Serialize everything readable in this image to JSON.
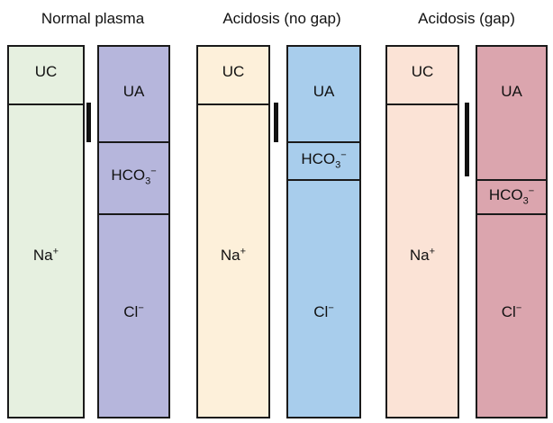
{
  "panels": [
    {
      "title": "Normal plasma",
      "cation_labels": {
        "unmeasured": "UC",
        "sodium": "Na",
        "sodium_charge": "+"
      },
      "anion_labels": {
        "unmeasured": "UA",
        "bicarb": "HCO",
        "bicarb_sub": "3",
        "bicarb_charge": "−",
        "chloride": "Cl",
        "chloride_charge": "−"
      },
      "colors": {
        "cation_fill": "#e6f0e0",
        "anion_fill": "#b6b6dc"
      }
    },
    {
      "title": "Acidosis (no gap)",
      "cation_labels": {
        "unmeasured": "UC",
        "sodium": "Na",
        "sodium_charge": "+"
      },
      "anion_labels": {
        "unmeasured": "UA",
        "bicarb": "HCO",
        "bicarb_sub": "3",
        "bicarb_charge": "−",
        "chloride": "Cl",
        "chloride_charge": "−"
      },
      "colors": {
        "cation_fill": "#fdf0da",
        "anion_fill": "#a8cdec"
      }
    },
    {
      "title": "Acidosis (gap)",
      "cation_labels": {
        "unmeasured": "UC",
        "sodium": "Na",
        "sodium_charge": "+"
      },
      "anion_labels": {
        "unmeasured": "UA",
        "bicarb": "HCO",
        "bicarb_sub": "3",
        "bicarb_charge": "−",
        "chloride": "Cl",
        "chloride_charge": "−"
      },
      "colors": {
        "cation_fill": "#fbe3d6",
        "anion_fill": "#dba5ae"
      }
    }
  ],
  "colors": {
    "outline": "#1a1a1a",
    "gap_bar": "#111111"
  }
}
